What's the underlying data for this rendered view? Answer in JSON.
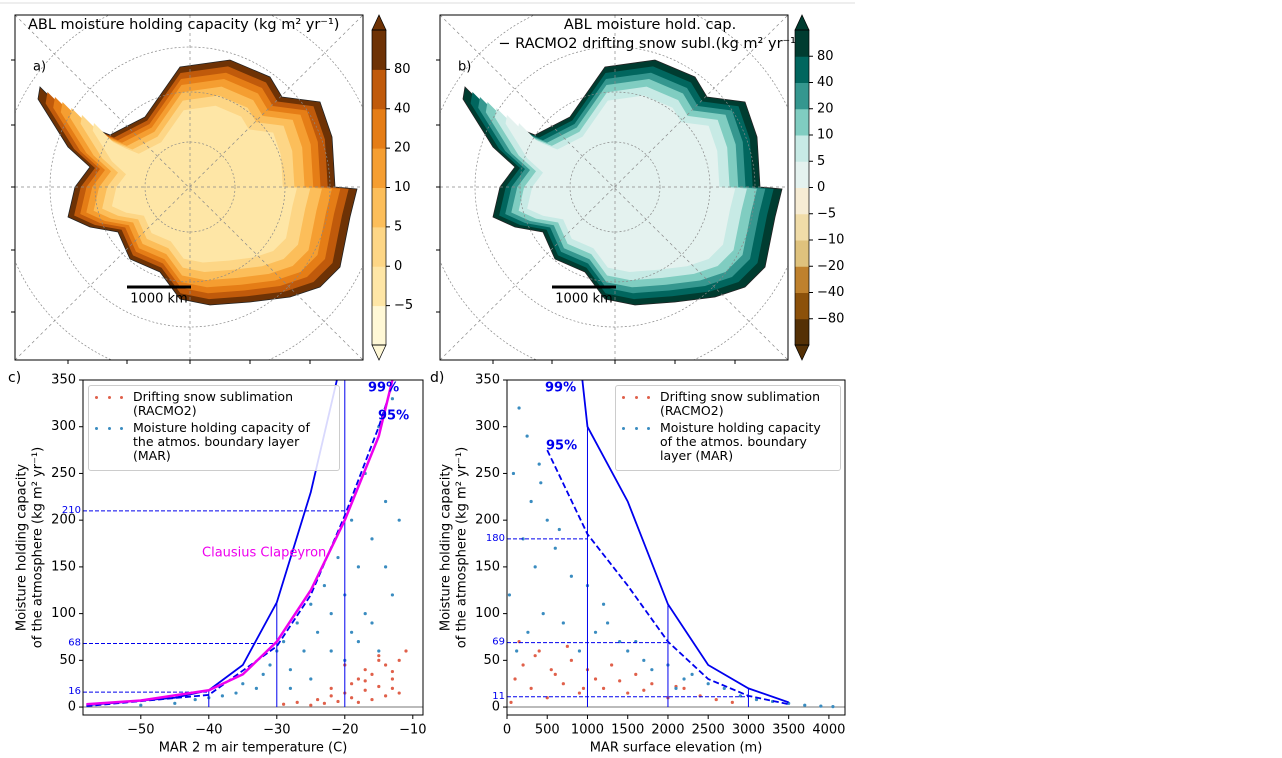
{
  "chart_data": [
    {
      "type": "map",
      "panel": "a)",
      "title": [
        "ABL moisture holding capacity (kg m² yr⁻¹)"
      ],
      "scale_bar": "1000 km",
      "colorbar": {
        "ticks": [
          {
            "value": -5,
            "label": "−5"
          },
          0,
          5,
          10,
          20,
          40,
          80
        ],
        "colors": [
          "#fff8d6",
          "#fee6a6",
          "#fdd686",
          "#fcbe5a",
          "#f59e31",
          "#e57d16",
          "#c05a0b",
          "#6e3205"
        ]
      }
    },
    {
      "type": "map",
      "panel": "b)",
      "title": [
        "ABL moisture hold. cap.",
        "− RACMO2 drifting snow subl.(kg m² yr⁻¹)"
      ],
      "scale_bar": "1000 km",
      "colorbar": {
        "ticks": [
          {
            "value": -80,
            "label": "−80"
          },
          {
            "value": -40,
            "label": "−40"
          },
          {
            "value": -20,
            "label": "−20"
          },
          {
            "value": -10,
            "label": "−10"
          },
          {
            "value": -5,
            "label": "−5"
          },
          0,
          5,
          10,
          20,
          40,
          80
        ],
        "colors": [
          "#543005",
          "#8c510a",
          "#bf812d",
          "#dfc27d",
          "#f0dca8",
          "#f6ecd4",
          "#e4f2ef",
          "#c7eae5",
          "#80cdc1",
          "#35978f",
          "#01665e",
          "#003c30"
        ]
      }
    },
    {
      "type": "scatter",
      "panel": "c)",
      "xlabel": "MAR 2 m air temperature (C)",
      "ylabel": [
        "Moisture holding capacity",
        "of the atmosphere (kg m² yr⁻¹)"
      ],
      "xlim": [
        -58.5,
        -8.5
      ],
      "ylim": [
        -8.5,
        350
      ],
      "xticks": [
        {
          "value": -50,
          "label": "−50"
        },
        {
          "value": -40,
          "label": "−40"
        },
        {
          "value": -30,
          "label": "−30"
        },
        {
          "value": -20,
          "label": "−20"
        },
        {
          "value": -10,
          "label": "−10"
        }
      ],
      "yticks": [
        0,
        50,
        100,
        150,
        200,
        250,
        300,
        350
      ],
      "series": [
        {
          "name": "Drifting snow sublimation (RACMO2)",
          "color": "#e0604a",
          "x": [
            -29,
            -27,
            -25,
            -24,
            -23,
            -22,
            -21,
            -20,
            -19,
            -19,
            -18,
            -18,
            -17,
            -17,
            -16,
            -16,
            -15,
            -15,
            -14,
            -14,
            -13,
            -13,
            -12,
            -12,
            -11,
            -22,
            -20,
            -17,
            -15,
            -13
          ],
          "values": [
            3,
            5,
            2,
            8,
            4,
            12,
            6,
            15,
            10,
            25,
            5,
            30,
            18,
            40,
            8,
            35,
            22,
            55,
            12,
            45,
            30,
            20,
            50,
            15,
            60,
            20,
            45,
            28,
            50,
            38
          ]
        },
        {
          "name": "Moisture holding capacity of the atmos. boundary layer (MAR)",
          "color": "#3a8cc0",
          "x": [
            -50,
            -45,
            -42,
            -40,
            -38,
            -36,
            -35,
            -33,
            -32,
            -31,
            -30,
            -29,
            -28,
            -27,
            -26,
            -25,
            -24,
            -23,
            -22,
            -21,
            -20,
            -19,
            -18,
            -17,
            -16,
            -15,
            -14,
            -13,
            -12,
            -13,
            -16,
            -18,
            -20,
            -22,
            -25,
            -28,
            -14,
            -17,
            -19,
            -15
          ],
          "values": [
            2,
            4,
            8,
            10,
            12,
            15,
            25,
            20,
            35,
            45,
            60,
            70,
            40,
            90,
            60,
            110,
            80,
            130,
            100,
            160,
            120,
            200,
            150,
            250,
            180,
            300,
            220,
            330,
            200,
            120,
            90,
            70,
            50,
            60,
            30,
            20,
            150,
            100,
            80,
            60
          ]
        }
      ],
      "lines": [
        {
          "name": "99%",
          "color": "#0000ee",
          "dash": false,
          "x": [
            -58,
            -45,
            -40,
            -35,
            -30,
            -25,
            -21
          ],
          "values": [
            2,
            10,
            18,
            45,
            112,
            230,
            355
          ]
        },
        {
          "name": "95%",
          "color": "#0000ee",
          "dash": true,
          "x": [
            -58,
            -40,
            -30,
            -25,
            -20,
            -15,
            -13
          ],
          "values": [
            1,
            13,
            65,
            120,
            205,
            300,
            345
          ]
        },
        {
          "name": "Clausius Clapeyron",
          "color": "#ee00ee",
          "dash": false,
          "x": [
            -58,
            -50,
            -40,
            -35,
            -30,
            -25,
            -20,
            -15,
            -13
          ],
          "values": [
            3,
            7,
            18,
            35,
            70,
            125,
            200,
            290,
            350
          ]
        }
      ],
      "ref_x": [
        -40,
        -30,
        -20
      ],
      "ref_y": [
        16,
        68,
        210
      ]
    },
    {
      "type": "scatter",
      "panel": "d)",
      "xlabel": "MAR surface elevation (m)",
      "ylabel": [
        "Moisture holding capacity",
        "of the atmosphere (kg m² yr⁻¹)"
      ],
      "xlim": [
        0,
        4200
      ],
      "ylim": [
        -8.5,
        350
      ],
      "xticks": [
        0,
        500,
        1000,
        1500,
        2000,
        2500,
        3000,
        3500,
        4000
      ],
      "yticks": [
        0,
        50,
        100,
        150,
        200,
        250,
        300,
        350
      ],
      "series": [
        {
          "name": "Drifting snow sublimation (RACMO2)",
          "color": "#e0604a",
          "x": [
            50,
            100,
            200,
            300,
            400,
            500,
            600,
            700,
            800,
            900,
            1000,
            1100,
            1200,
            1300,
            1500,
            1600,
            1800,
            2000,
            2200,
            2400,
            2600,
            2800,
            150,
            350,
            550,
            750,
            950,
            1400,
            1700,
            2100
          ],
          "values": [
            5,
            30,
            45,
            20,
            60,
            10,
            35,
            25,
            50,
            15,
            40,
            30,
            20,
            45,
            15,
            35,
            25,
            10,
            20,
            12,
            8,
            5,
            70,
            55,
            40,
            65,
            20,
            28,
            18,
            22
          ]
        },
        {
          "name": "Moisture holding capacity of the atmos. boundary layer (MAR)",
          "color": "#3a8cc0",
          "x": [
            30,
            80,
            150,
            200,
            250,
            300,
            350,
            400,
            450,
            500,
            600,
            700,
            800,
            900,
            1000,
            1100,
            1200,
            1400,
            1500,
            1700,
            1800,
            2000,
            2200,
            2300,
            2500,
            2700,
            2900,
            3100,
            3300,
            3500,
            3700,
            3900,
            4050,
            120,
            260,
            420,
            650,
            1250,
            1600,
            2100
          ],
          "values": [
            120,
            250,
            320,
            180,
            290,
            220,
            150,
            260,
            100,
            200,
            170,
            90,
            140,
            60,
            130,
            80,
            110,
            70,
            60,
            50,
            40,
            45,
            30,
            35,
            25,
            20,
            12,
            8,
            6,
            4,
            2,
            1,
            0.5,
            60,
            80,
            240,
            190,
            90,
            70,
            20
          ]
        }
      ],
      "lines": [
        {
          "name": "99%",
          "color": "#0000ee",
          "dash": false,
          "x": [
            930,
            1000,
            1500,
            2000,
            2500,
            3000,
            3500
          ],
          "values": [
            355,
            300,
            220,
            110,
            45,
            20,
            5
          ]
        },
        {
          "name": "95%",
          "color": "#0000ee",
          "dash": true,
          "x": [
            500,
            1000,
            1500,
            2000,
            2500,
            3000,
            3500
          ],
          "values": [
            275,
            185,
            130,
            70,
            30,
            12,
            3
          ]
        }
      ],
      "ref_x": [
        1000,
        2000,
        3000
      ],
      "ref_y": [
        180,
        69,
        11
      ]
    }
  ]
}
